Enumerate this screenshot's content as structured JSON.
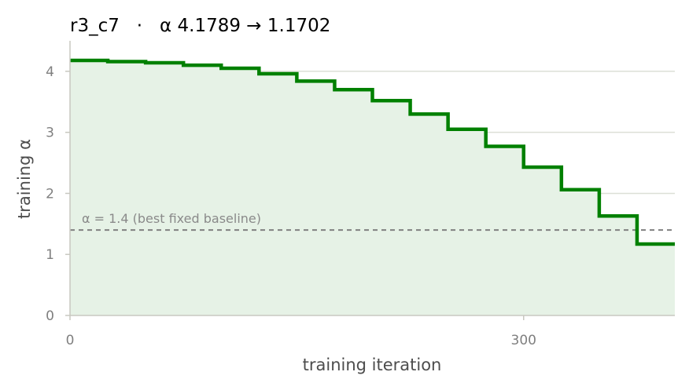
{
  "chart_data": {
    "type": "line",
    "step": true,
    "title": "r3_c7   ·   α 4.1789 → 1.1702",
    "xlabel": "training iteration",
    "ylabel": "training α",
    "xlim": [
      0,
      400
    ],
    "ylim": [
      0,
      4.5
    ],
    "xticks": [
      0,
      300
    ],
    "yticks": [
      0,
      1,
      2,
      3,
      4
    ],
    "grid": "horizontal",
    "fill_under": true,
    "color": "#008000",
    "fill_color": "#e6f2e6",
    "series": [
      {
        "x": [
          0,
          25,
          50,
          75,
          100,
          125,
          150,
          175,
          200,
          225,
          250,
          275,
          300,
          325,
          350,
          375,
          400
        ],
        "y": [
          4.1789,
          4.16,
          4.14,
          4.1,
          4.05,
          3.96,
          3.84,
          3.7,
          3.52,
          3.3,
          3.05,
          2.77,
          2.43,
          2.06,
          1.63,
          1.1702,
          1.1702
        ]
      }
    ],
    "reference_line": {
      "y": 1.4,
      "label": "α = 1.4 (best fixed baseline)",
      "style": "dashed",
      "color": "#808080"
    }
  }
}
